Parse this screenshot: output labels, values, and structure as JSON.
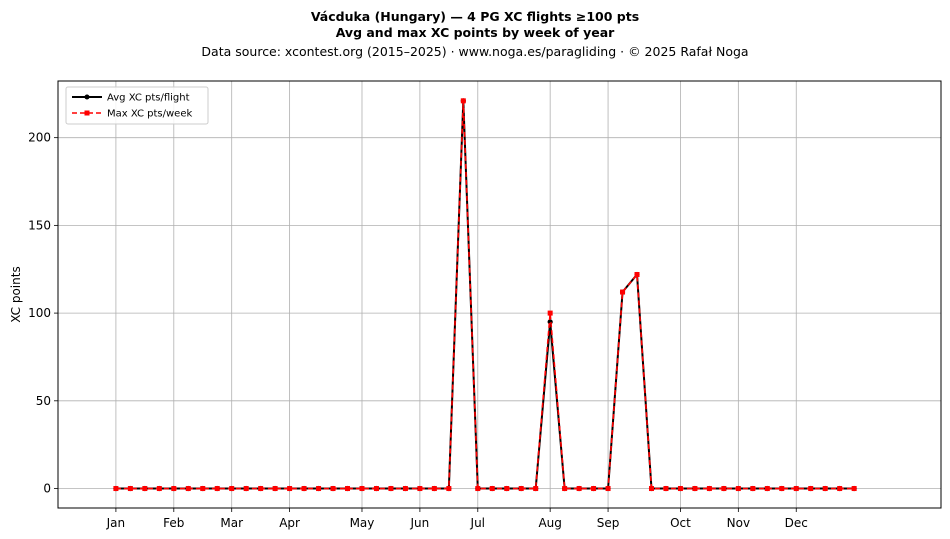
{
  "chart_data": {
    "type": "line",
    "title": "Vácduka (Hungary)  —  4 PG XC flights ≥100 pts",
    "subtitle": "Avg and max XC points by week of year",
    "source": "Data source: xcontest.org (2015–2025)  ·  www.noga.es/paragliding  ·  © 2025 Rafał Noga",
    "xlabel": "",
    "ylabel": "XC points",
    "xlim": [
      -3,
      58
    ],
    "ylim": [
      -11.1,
      232.3
    ],
    "yticks": [
      0,
      50,
      100,
      150,
      200
    ],
    "x_ticks": [
      {
        "week": 1,
        "label": "Jan"
      },
      {
        "week": 5,
        "label": "Feb"
      },
      {
        "week": 9,
        "label": "Mar"
      },
      {
        "week": 13,
        "label": "Apr"
      },
      {
        "week": 18,
        "label": "May"
      },
      {
        "week": 22,
        "label": "Jun"
      },
      {
        "week": 26,
        "label": "Jul"
      },
      {
        "week": 31,
        "label": "Aug"
      },
      {
        "week": 35,
        "label": "Sep"
      },
      {
        "week": 40,
        "label": "Oct"
      },
      {
        "week": 44,
        "label": "Nov"
      },
      {
        "week": 48,
        "label": "Dec"
      }
    ],
    "grid": true,
    "legend_position": "top-left",
    "x": [
      1,
      2,
      3,
      4,
      5,
      6,
      7,
      8,
      9,
      10,
      11,
      12,
      13,
      14,
      15,
      16,
      17,
      18,
      19,
      20,
      21,
      22,
      23,
      24,
      25,
      26,
      27,
      28,
      29,
      30,
      31,
      32,
      33,
      34,
      35,
      36,
      37,
      38,
      39,
      40,
      41,
      42,
      43,
      44,
      45,
      46,
      47,
      48,
      49,
      50,
      51,
      52
    ],
    "series": [
      {
        "name": "Avg XC pts/flight",
        "color": "#000000",
        "style": "solid",
        "marker": "circle",
        "values": [
          0,
          0,
          0,
          0,
          0,
          0,
          0,
          0,
          0,
          0,
          0,
          0,
          0,
          0,
          0,
          0,
          0,
          0,
          0,
          0,
          0,
          0,
          0,
          0,
          221,
          0,
          0,
          0,
          0,
          0,
          95,
          0,
          0,
          0,
          0,
          112,
          122,
          0,
          0,
          0,
          0,
          0,
          0,
          0,
          0,
          0,
          0,
          0,
          0,
          0,
          0,
          0
        ]
      },
      {
        "name": "Max XC pts/week",
        "color": "#ff0000",
        "style": "dashed",
        "marker": "square",
        "values": [
          0,
          0,
          0,
          0,
          0,
          0,
          0,
          0,
          0,
          0,
          0,
          0,
          0,
          0,
          0,
          0,
          0,
          0,
          0,
          0,
          0,
          0,
          0,
          0,
          221,
          0,
          0,
          0,
          0,
          0,
          100,
          0,
          0,
          0,
          0,
          112,
          122,
          0,
          0,
          0,
          0,
          0,
          0,
          0,
          0,
          0,
          0,
          0,
          0,
          0,
          0,
          0
        ]
      }
    ]
  }
}
